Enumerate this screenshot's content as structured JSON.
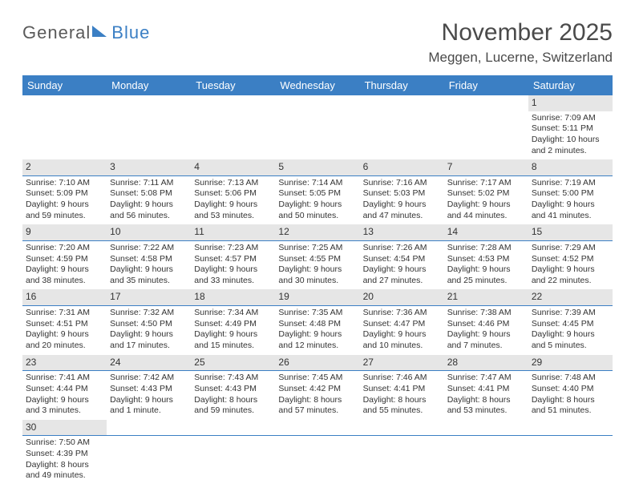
{
  "logo": {
    "part1": "General",
    "part2": "Blue"
  },
  "title": "November 2025",
  "location": "Meggen, Lucerne, Switzerland",
  "colors": {
    "header_bg": "#3b7fc4",
    "header_text": "#ffffff",
    "daynum_bg": "#e6e6e6",
    "divider": "#3b7fc4",
    "body_text": "#333333",
    "title_text": "#4a4a4a"
  },
  "typography": {
    "title_fontsize": 30,
    "location_fontsize": 17,
    "header_fontsize": 13,
    "cell_fontsize": 10.5
  },
  "columns": [
    "Sunday",
    "Monday",
    "Tuesday",
    "Wednesday",
    "Thursday",
    "Friday",
    "Saturday"
  ],
  "weeks": [
    [
      null,
      null,
      null,
      null,
      null,
      null,
      {
        "day": "1",
        "sunrise": "Sunrise: 7:09 AM",
        "sunset": "Sunset: 5:11 PM",
        "daylight1": "Daylight: 10 hours",
        "daylight2": "and 2 minutes."
      }
    ],
    [
      {
        "day": "2",
        "sunrise": "Sunrise: 7:10 AM",
        "sunset": "Sunset: 5:09 PM",
        "daylight1": "Daylight: 9 hours",
        "daylight2": "and 59 minutes."
      },
      {
        "day": "3",
        "sunrise": "Sunrise: 7:11 AM",
        "sunset": "Sunset: 5:08 PM",
        "daylight1": "Daylight: 9 hours",
        "daylight2": "and 56 minutes."
      },
      {
        "day": "4",
        "sunrise": "Sunrise: 7:13 AM",
        "sunset": "Sunset: 5:06 PM",
        "daylight1": "Daylight: 9 hours",
        "daylight2": "and 53 minutes."
      },
      {
        "day": "5",
        "sunrise": "Sunrise: 7:14 AM",
        "sunset": "Sunset: 5:05 PM",
        "daylight1": "Daylight: 9 hours",
        "daylight2": "and 50 minutes."
      },
      {
        "day": "6",
        "sunrise": "Sunrise: 7:16 AM",
        "sunset": "Sunset: 5:03 PM",
        "daylight1": "Daylight: 9 hours",
        "daylight2": "and 47 minutes."
      },
      {
        "day": "7",
        "sunrise": "Sunrise: 7:17 AM",
        "sunset": "Sunset: 5:02 PM",
        "daylight1": "Daylight: 9 hours",
        "daylight2": "and 44 minutes."
      },
      {
        "day": "8",
        "sunrise": "Sunrise: 7:19 AM",
        "sunset": "Sunset: 5:00 PM",
        "daylight1": "Daylight: 9 hours",
        "daylight2": "and 41 minutes."
      }
    ],
    [
      {
        "day": "9",
        "sunrise": "Sunrise: 7:20 AM",
        "sunset": "Sunset: 4:59 PM",
        "daylight1": "Daylight: 9 hours",
        "daylight2": "and 38 minutes."
      },
      {
        "day": "10",
        "sunrise": "Sunrise: 7:22 AM",
        "sunset": "Sunset: 4:58 PM",
        "daylight1": "Daylight: 9 hours",
        "daylight2": "and 35 minutes."
      },
      {
        "day": "11",
        "sunrise": "Sunrise: 7:23 AM",
        "sunset": "Sunset: 4:57 PM",
        "daylight1": "Daylight: 9 hours",
        "daylight2": "and 33 minutes."
      },
      {
        "day": "12",
        "sunrise": "Sunrise: 7:25 AM",
        "sunset": "Sunset: 4:55 PM",
        "daylight1": "Daylight: 9 hours",
        "daylight2": "and 30 minutes."
      },
      {
        "day": "13",
        "sunrise": "Sunrise: 7:26 AM",
        "sunset": "Sunset: 4:54 PM",
        "daylight1": "Daylight: 9 hours",
        "daylight2": "and 27 minutes."
      },
      {
        "day": "14",
        "sunrise": "Sunrise: 7:28 AM",
        "sunset": "Sunset: 4:53 PM",
        "daylight1": "Daylight: 9 hours",
        "daylight2": "and 25 minutes."
      },
      {
        "day": "15",
        "sunrise": "Sunrise: 7:29 AM",
        "sunset": "Sunset: 4:52 PM",
        "daylight1": "Daylight: 9 hours",
        "daylight2": "and 22 minutes."
      }
    ],
    [
      {
        "day": "16",
        "sunrise": "Sunrise: 7:31 AM",
        "sunset": "Sunset: 4:51 PM",
        "daylight1": "Daylight: 9 hours",
        "daylight2": "and 20 minutes."
      },
      {
        "day": "17",
        "sunrise": "Sunrise: 7:32 AM",
        "sunset": "Sunset: 4:50 PM",
        "daylight1": "Daylight: 9 hours",
        "daylight2": "and 17 minutes."
      },
      {
        "day": "18",
        "sunrise": "Sunrise: 7:34 AM",
        "sunset": "Sunset: 4:49 PM",
        "daylight1": "Daylight: 9 hours",
        "daylight2": "and 15 minutes."
      },
      {
        "day": "19",
        "sunrise": "Sunrise: 7:35 AM",
        "sunset": "Sunset: 4:48 PM",
        "daylight1": "Daylight: 9 hours",
        "daylight2": "and 12 minutes."
      },
      {
        "day": "20",
        "sunrise": "Sunrise: 7:36 AM",
        "sunset": "Sunset: 4:47 PM",
        "daylight1": "Daylight: 9 hours",
        "daylight2": "and 10 minutes."
      },
      {
        "day": "21",
        "sunrise": "Sunrise: 7:38 AM",
        "sunset": "Sunset: 4:46 PM",
        "daylight1": "Daylight: 9 hours",
        "daylight2": "and 7 minutes."
      },
      {
        "day": "22",
        "sunrise": "Sunrise: 7:39 AM",
        "sunset": "Sunset: 4:45 PM",
        "daylight1": "Daylight: 9 hours",
        "daylight2": "and 5 minutes."
      }
    ],
    [
      {
        "day": "23",
        "sunrise": "Sunrise: 7:41 AM",
        "sunset": "Sunset: 4:44 PM",
        "daylight1": "Daylight: 9 hours",
        "daylight2": "and 3 minutes."
      },
      {
        "day": "24",
        "sunrise": "Sunrise: 7:42 AM",
        "sunset": "Sunset: 4:43 PM",
        "daylight1": "Daylight: 9 hours",
        "daylight2": "and 1 minute."
      },
      {
        "day": "25",
        "sunrise": "Sunrise: 7:43 AM",
        "sunset": "Sunset: 4:43 PM",
        "daylight1": "Daylight: 8 hours",
        "daylight2": "and 59 minutes."
      },
      {
        "day": "26",
        "sunrise": "Sunrise: 7:45 AM",
        "sunset": "Sunset: 4:42 PM",
        "daylight1": "Daylight: 8 hours",
        "daylight2": "and 57 minutes."
      },
      {
        "day": "27",
        "sunrise": "Sunrise: 7:46 AM",
        "sunset": "Sunset: 4:41 PM",
        "daylight1": "Daylight: 8 hours",
        "daylight2": "and 55 minutes."
      },
      {
        "day": "28",
        "sunrise": "Sunrise: 7:47 AM",
        "sunset": "Sunset: 4:41 PM",
        "daylight1": "Daylight: 8 hours",
        "daylight2": "and 53 minutes."
      },
      {
        "day": "29",
        "sunrise": "Sunrise: 7:48 AM",
        "sunset": "Sunset: 4:40 PM",
        "daylight1": "Daylight: 8 hours",
        "daylight2": "and 51 minutes."
      }
    ],
    [
      {
        "day": "30",
        "sunrise": "Sunrise: 7:50 AM",
        "sunset": "Sunset: 4:39 PM",
        "daylight1": "Daylight: 8 hours",
        "daylight2": "and 49 minutes."
      },
      null,
      null,
      null,
      null,
      null,
      null
    ]
  ]
}
